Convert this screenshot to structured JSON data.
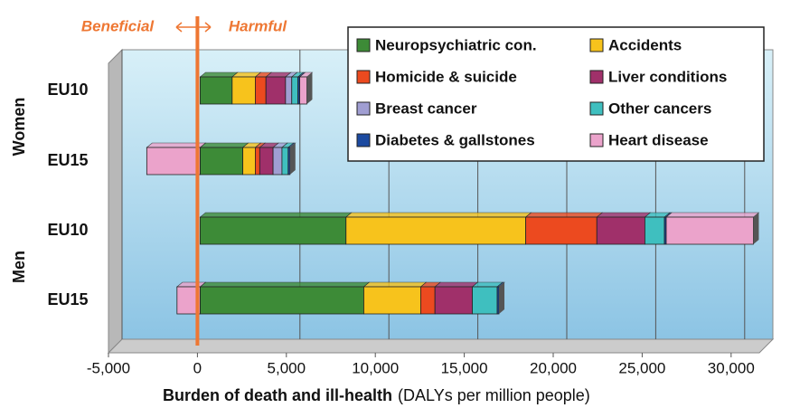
{
  "chart_data": {
    "type": "stacked-bar-horizontal",
    "annotations": [
      "Beneficial",
      "Harmful"
    ],
    "xlabel": "Burden of death and ill-health",
    "xlabel_note": "(DALYs per million people)",
    "groups": [
      "Women",
      "Men"
    ],
    "categories": [
      "EU10",
      "EU15",
      "EU10",
      "EU15"
    ],
    "series": [
      {
        "name": "Neuropsychiatric con.",
        "color": "#3d8b37",
        "values": [
          1800,
          2400,
          8200,
          9200
        ]
      },
      {
        "name": "Accidents",
        "color": "#f7c31c",
        "values": [
          1300,
          700,
          10100,
          3200
        ]
      },
      {
        "name": "Homicide & suicide",
        "color": "#ec4a1f",
        "values": [
          600,
          250,
          4000,
          800
        ]
      },
      {
        "name": "Liver conditions",
        "color": "#a0306a",
        "values": [
          1100,
          750,
          2700,
          2100
        ]
      },
      {
        "name": "Breast cancer",
        "color": "#a09ed2",
        "values": [
          350,
          500,
          0,
          0
        ]
      },
      {
        "name": "Other cancers",
        "color": "#3fbfbf",
        "values": [
          350,
          350,
          1100,
          1400
        ]
      },
      {
        "name": "Diabetes & gallstones",
        "color": "#1c4aa0",
        "values": [
          100,
          100,
          100,
          100
        ]
      },
      {
        "name": "Heart disease",
        "color": "#eba3cb",
        "values": [
          400,
          -3000,
          4900,
          -1300
        ]
      }
    ],
    "xlim": [
      -5000,
      32500
    ],
    "xticks": [
      {
        "value": -5000,
        "label": "-5,000"
      },
      0,
      {
        "value": 5000,
        "label": "5,000"
      },
      {
        "value": 10000,
        "label": "10,000"
      },
      {
        "value": 15000,
        "label": "15,000"
      },
      {
        "value": 20000,
        "label": "20,000"
      },
      {
        "value": 25000,
        "label": "25,000"
      },
      {
        "value": 30000,
        "label": "30,000"
      }
    ],
    "grid": true,
    "legend": "top-right"
  }
}
